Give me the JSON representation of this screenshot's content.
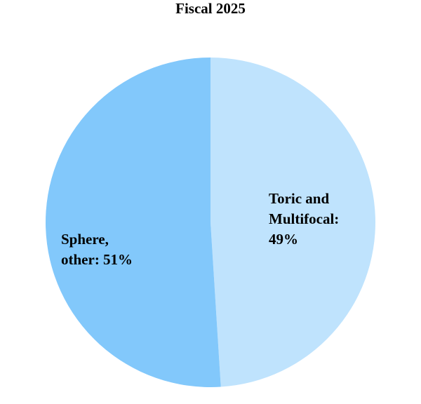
{
  "chart_data": {
    "type": "pie",
    "title": "Fiscal 2025",
    "values": [
      49,
      51
    ],
    "colors": [
      "#bfe3fd",
      "#82c8fb"
    ],
    "label_lines": [
      [
        "Toric and",
        "Multifocal:",
        "49%"
      ],
      [
        "Sphere,",
        "other: 51%"
      ]
    ]
  }
}
